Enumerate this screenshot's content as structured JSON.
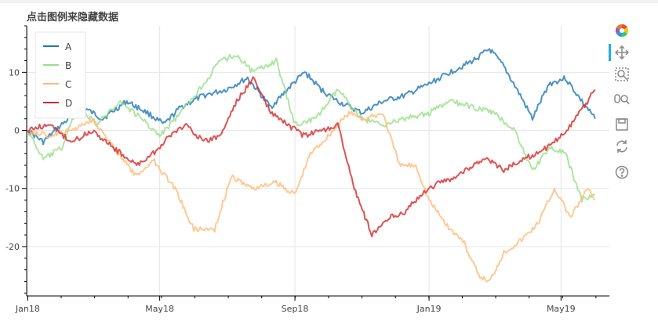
{
  "title": "点击图例来隐藏数据",
  "toolbar": {
    "items": [
      {
        "name": "bokeh-logo-icon",
        "interactable": true
      },
      {
        "name": "pan-tool-icon",
        "interactable": true,
        "active": true
      },
      {
        "name": "box-zoom-tool-icon",
        "interactable": true
      },
      {
        "name": "wheel-zoom-tool-icon",
        "interactable": true
      },
      {
        "name": "save-tool-icon",
        "interactable": true
      },
      {
        "name": "reset-tool-icon",
        "interactable": true
      },
      {
        "name": "help-tool-icon",
        "interactable": true
      }
    ]
  },
  "chart_data": {
    "type": "line",
    "title": "点击图例来隐藏数据",
    "xlabel": "",
    "ylabel": "",
    "x_range": [
      "2017-12-31",
      "2019-06-14"
    ],
    "ylim": [
      -28.5,
      18
    ],
    "x_ticks": [
      {
        "date": "2018-01-01",
        "label": "Jan18"
      },
      {
        "date": "2018-05-01",
        "label": "May18"
      },
      {
        "date": "2018-09-01",
        "label": "Sep18"
      },
      {
        "date": "2019-01-01",
        "label": "Jan19"
      },
      {
        "date": "2019-05-01",
        "label": "May19"
      }
    ],
    "y_ticks": [
      10,
      0,
      -10,
      -20
    ],
    "grid": true,
    "legend_position": "top-left",
    "series": [
      {
        "name": "A",
        "color": "#1f77b4",
        "points": [
          [
            "2018-01-01",
            0
          ],
          [
            "2018-01-15",
            -2
          ],
          [
            "2018-02-01",
            1
          ],
          [
            "2018-02-20",
            4
          ],
          [
            "2018-03-10",
            2
          ],
          [
            "2018-04-01",
            5
          ],
          [
            "2018-04-20",
            3
          ],
          [
            "2018-05-05",
            1
          ],
          [
            "2018-05-20",
            4
          ],
          [
            "2018-06-10",
            6
          ],
          [
            "2018-06-30",
            7
          ],
          [
            "2018-07-20",
            9
          ],
          [
            "2018-08-10",
            4
          ],
          [
            "2018-08-30",
            8
          ],
          [
            "2018-09-10",
            10
          ],
          [
            "2018-09-25",
            7
          ],
          [
            "2018-10-10",
            5
          ],
          [
            "2018-11-01",
            3
          ],
          [
            "2018-11-20",
            5
          ],
          [
            "2018-12-10",
            6
          ],
          [
            "2019-01-01",
            8
          ],
          [
            "2019-01-20",
            10
          ],
          [
            "2019-02-10",
            12
          ],
          [
            "2019-02-25",
            14
          ],
          [
            "2019-03-10",
            11
          ],
          [
            "2019-03-25",
            6
          ],
          [
            "2019-04-05",
            2
          ],
          [
            "2019-04-20",
            8
          ],
          [
            "2019-05-05",
            9
          ],
          [
            "2019-05-20",
            5
          ],
          [
            "2019-06-01",
            2
          ]
        ]
      },
      {
        "name": "B",
        "color": "#98df8a",
        "points": [
          [
            "2018-01-01",
            0
          ],
          [
            "2018-01-15",
            -5
          ],
          [
            "2018-02-01",
            -3
          ],
          [
            "2018-02-15",
            4
          ],
          [
            "2018-03-05",
            1
          ],
          [
            "2018-03-25",
            5
          ],
          [
            "2018-04-15",
            2
          ],
          [
            "2018-05-01",
            -1
          ],
          [
            "2018-05-20",
            3
          ],
          [
            "2018-06-10",
            8
          ],
          [
            "2018-06-25",
            12
          ],
          [
            "2018-07-10",
            13
          ],
          [
            "2018-07-25",
            10
          ],
          [
            "2018-08-15",
            12
          ],
          [
            "2018-09-01",
            1
          ],
          [
            "2018-09-20",
            2
          ],
          [
            "2018-10-10",
            7
          ],
          [
            "2018-11-01",
            2
          ],
          [
            "2018-11-20",
            1
          ],
          [
            "2018-12-10",
            2
          ],
          [
            "2019-01-01",
            3
          ],
          [
            "2019-01-20",
            5
          ],
          [
            "2019-02-10",
            4
          ],
          [
            "2019-03-01",
            3
          ],
          [
            "2019-03-20",
            0
          ],
          [
            "2019-04-05",
            -7
          ],
          [
            "2019-04-20",
            -3
          ],
          [
            "2019-05-05",
            -4
          ],
          [
            "2019-05-20",
            -12
          ],
          [
            "2019-06-01",
            -11
          ]
        ]
      },
      {
        "name": "C",
        "color": "#ffbb78",
        "points": [
          [
            "2018-01-01",
            0
          ],
          [
            "2018-01-20",
            -1
          ],
          [
            "2018-02-10",
            0
          ],
          [
            "2018-03-01",
            2
          ],
          [
            "2018-03-20",
            -3
          ],
          [
            "2018-04-10",
            -8
          ],
          [
            "2018-04-25",
            -5
          ],
          [
            "2018-05-15",
            -10
          ],
          [
            "2018-06-01",
            -17
          ],
          [
            "2018-06-20",
            -17
          ],
          [
            "2018-07-05",
            -8
          ],
          [
            "2018-07-25",
            -10
          ],
          [
            "2018-08-15",
            -9
          ],
          [
            "2018-09-01",
            -11
          ],
          [
            "2018-09-15",
            -4
          ],
          [
            "2018-10-01",
            -1
          ],
          [
            "2018-10-20",
            3
          ],
          [
            "2018-11-05",
            2
          ],
          [
            "2018-11-20",
            3
          ],
          [
            "2018-12-05",
            -6
          ],
          [
            "2018-12-20",
            -6
          ],
          [
            "2019-01-01",
            -12
          ],
          [
            "2019-01-20",
            -17
          ],
          [
            "2019-02-01",
            -19
          ],
          [
            "2019-02-15",
            -25
          ],
          [
            "2019-02-25",
            -26
          ],
          [
            "2019-03-10",
            -21
          ],
          [
            "2019-03-25",
            -19
          ],
          [
            "2019-04-10",
            -16
          ],
          [
            "2019-04-25",
            -10
          ],
          [
            "2019-05-10",
            -15
          ],
          [
            "2019-05-25",
            -10
          ],
          [
            "2019-06-01",
            -12
          ]
        ]
      },
      {
        "name": "D",
        "color": "#d62728",
        "points": [
          [
            "2018-01-01",
            0
          ],
          [
            "2018-01-20",
            1
          ],
          [
            "2018-02-10",
            -2
          ],
          [
            "2018-03-01",
            0
          ],
          [
            "2018-03-20",
            -3
          ],
          [
            "2018-04-10",
            -6
          ],
          [
            "2018-04-25",
            -4
          ],
          [
            "2018-05-10",
            -1
          ],
          [
            "2018-05-25",
            1
          ],
          [
            "2018-06-10",
            -2
          ],
          [
            "2018-06-25",
            -1
          ],
          [
            "2018-07-10",
            5
          ],
          [
            "2018-07-25",
            9
          ],
          [
            "2018-08-10",
            3
          ],
          [
            "2018-08-25",
            1
          ],
          [
            "2018-09-10",
            -1
          ],
          [
            "2018-09-25",
            0
          ],
          [
            "2018-10-10",
            1
          ],
          [
            "2018-10-25",
            -10
          ],
          [
            "2018-11-10",
            -18
          ],
          [
            "2018-11-25",
            -15
          ],
          [
            "2018-12-10",
            -14
          ],
          [
            "2018-12-25",
            -11
          ],
          [
            "2019-01-10",
            -9
          ],
          [
            "2019-01-25",
            -8
          ],
          [
            "2019-02-10",
            -6
          ],
          [
            "2019-02-25",
            -5
          ],
          [
            "2019-03-10",
            -7
          ],
          [
            "2019-03-25",
            -5
          ],
          [
            "2019-04-10",
            -4
          ],
          [
            "2019-04-25",
            -2
          ],
          [
            "2019-05-10",
            1
          ],
          [
            "2019-05-25",
            5
          ],
          [
            "2019-06-01",
            7
          ]
        ]
      }
    ]
  }
}
